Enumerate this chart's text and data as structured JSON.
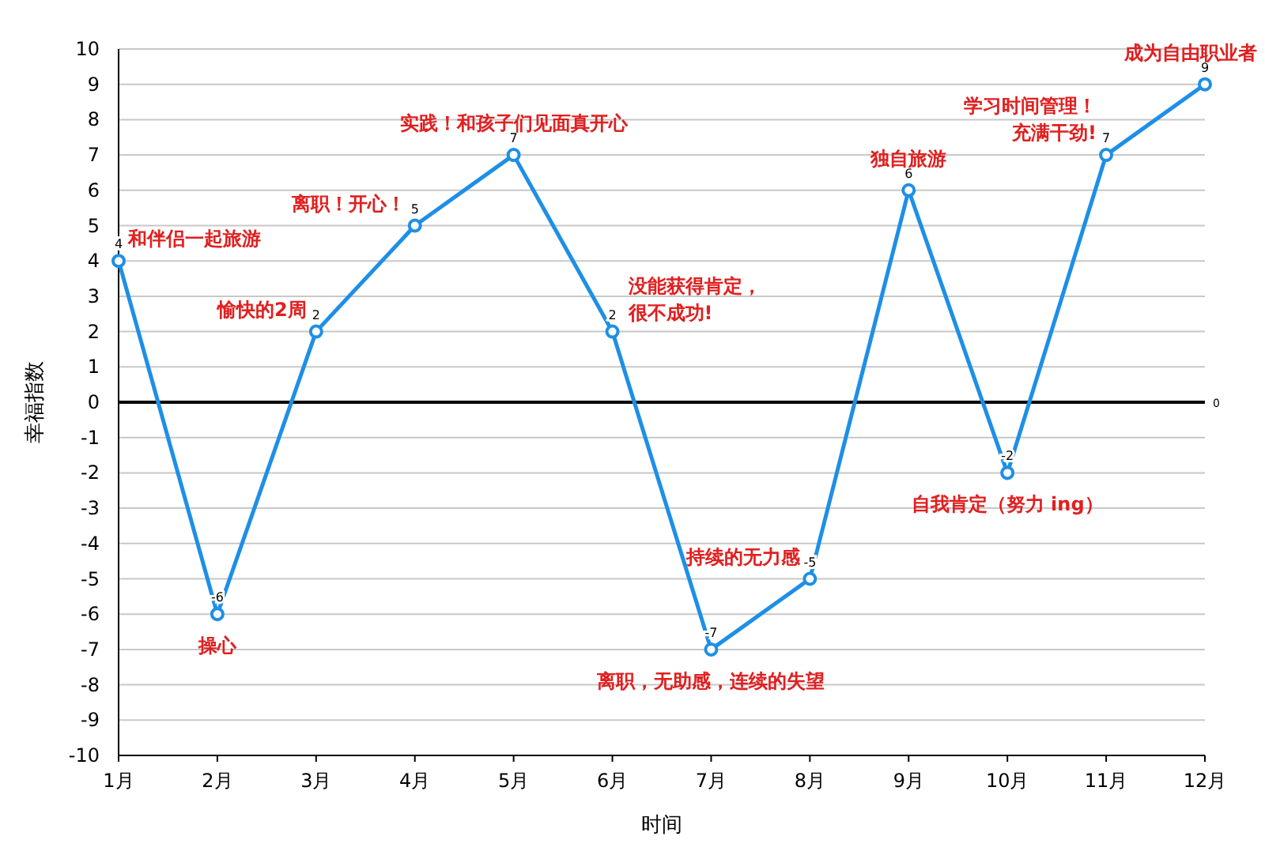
{
  "chart_data": {
    "type": "line",
    "xlabel": "时间",
    "ylabel": "幸福指数",
    "categories": [
      "1月",
      "2月",
      "3月",
      "4月",
      "5月",
      "6月",
      "7月",
      "8月",
      "9月",
      "10月",
      "11月",
      "12月"
    ],
    "series": [
      {
        "color": "#1e8fe6",
        "values": [
          4,
          -6,
          2,
          5,
          7,
          2,
          -7,
          -5,
          6,
          -2,
          7,
          9
        ]
      }
    ],
    "ylim": [
      -10,
      10
    ],
    "yticks": [
      -10,
      -9,
      -8,
      -7,
      -6,
      -5,
      -4,
      -3,
      -2,
      -1,
      0,
      1,
      2,
      3,
      4,
      5,
      6,
      7,
      8,
      9,
      10
    ],
    "grid": "y",
    "marker": "circle",
    "line_style": "solid",
    "data_labels": true,
    "ref_lines": [
      {
        "axis": "y",
        "value": 0,
        "label": "0",
        "color": "#000000"
      }
    ],
    "annotations": [
      {
        "text": "和伴侣一起旅游",
        "x": "1月",
        "y": 4
      },
      {
        "text": "操心",
        "x": "2月",
        "y": -6
      },
      {
        "text": "愉快的2周",
        "x": "3月",
        "y": 2
      },
      {
        "text": "离职！开心！",
        "x": "4月",
        "y": 5
      },
      {
        "text": "实践！和孩子们见面真开心",
        "x": "5月",
        "y": 7
      },
      {
        "text": "没能获得肯定，很不成功!",
        "x": "6月",
        "y": 2
      },
      {
        "text": "离职，无助感，连续的失望",
        "x": "7月",
        "y": -7
      },
      {
        "text": "持续的无力感",
        "x": "8月",
        "y": -5
      },
      {
        "text": "独自旅游",
        "x": "9月",
        "y": 6
      },
      {
        "text": "自我肯定（努力 ing）",
        "x": "10月",
        "y": -2
      },
      {
        "text": "学习时间管理！充满干劲!",
        "x": "11月",
        "y": 7
      },
      {
        "text": "成为自由职业者",
        "x": "12月",
        "y": 9
      }
    ]
  }
}
